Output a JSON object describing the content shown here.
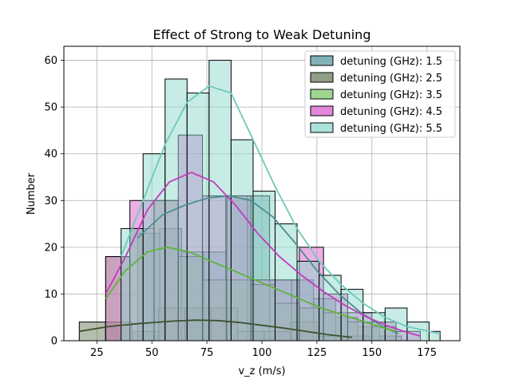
{
  "chart_data": {
    "type": "histogram",
    "title": "Effect of Strong to Weak Detuning",
    "xlabel": "v_z (m/s)",
    "ylabel": "Number",
    "xlim": [
      10,
      190
    ],
    "ylim": [
      0,
      63
    ],
    "xticks": [
      25,
      50,
      75,
      100,
      125,
      150,
      175
    ],
    "yticks": [
      0,
      10,
      20,
      30,
      40,
      50,
      60
    ],
    "grid": true,
    "legend_position": "top-right",
    "series": [
      {
        "name": "detuning (GHz): 1.5",
        "color": "#5a9aa0",
        "bins": [
          [
            43.5,
            53.5,
            23
          ],
          [
            53.5,
            63.5,
            24
          ],
          [
            63.5,
            73.5,
            19
          ],
          [
            73.5,
            83.5,
            19
          ],
          [
            83.5,
            93.5,
            31
          ],
          [
            93.5,
            103.5,
            31
          ],
          [
            103.5,
            113.5,
            13
          ],
          [
            113.5,
            123.5,
            13
          ],
          [
            123.5,
            133.5,
            9
          ],
          [
            133.5,
            143.5,
            5
          ],
          [
            143.5,
            153.5,
            3
          ],
          [
            153.5,
            163.5,
            1
          ]
        ],
        "kde": [
          [
            43.5,
            22
          ],
          [
            55,
            27
          ],
          [
            65,
            29
          ],
          [
            75,
            30.5
          ],
          [
            85,
            31
          ],
          [
            95,
            30
          ],
          [
            105,
            26.5
          ],
          [
            115,
            21
          ],
          [
            125,
            15
          ],
          [
            135,
            10
          ],
          [
            145,
            6
          ],
          [
            155,
            3
          ],
          [
            162,
            1.5
          ]
        ],
        "kde_color": "#4a8f8f"
      },
      {
        "name": "detuning (GHz): 2.5",
        "color": "#6b7d5c",
        "bins": [
          [
            17,
            29,
            4
          ],
          [
            29,
            41,
            4
          ],
          [
            41,
            53,
            2
          ],
          [
            53,
            65,
            7
          ],
          [
            65,
            77,
            7
          ],
          [
            77,
            89,
            7
          ],
          [
            89,
            101,
            2
          ],
          [
            101,
            113,
            2
          ],
          [
            113,
            125,
            4
          ],
          [
            125,
            137,
            1
          ],
          [
            137,
            149,
            1
          ]
        ],
        "kde": [
          [
            17,
            2
          ],
          [
            30,
            3
          ],
          [
            45,
            3.7
          ],
          [
            60,
            4.2
          ],
          [
            70,
            4.4
          ],
          [
            80,
            4.3
          ],
          [
            90,
            3.9
          ],
          [
            100,
            3.3
          ],
          [
            110,
            2.7
          ],
          [
            120,
            2
          ],
          [
            130,
            1.3
          ],
          [
            141,
            0.7
          ]
        ],
        "kde_color": "#3d5230"
      },
      {
        "name": "detuning (GHz): 3.5",
        "color": "#7ec86b",
        "bins": [
          [
            29,
            40,
            18
          ],
          [
            40,
            51,
            24
          ],
          [
            51,
            62,
            30
          ],
          [
            62,
            73,
            18
          ],
          [
            73,
            84,
            13
          ],
          [
            84,
            95,
            13
          ],
          [
            95,
            106,
            12
          ],
          [
            106,
            117,
            8
          ],
          [
            117,
            128,
            7
          ],
          [
            128,
            139,
            6
          ],
          [
            139,
            150,
            4
          ],
          [
            150,
            161,
            3
          ]
        ],
        "kde": [
          [
            29,
            9
          ],
          [
            38,
            15
          ],
          [
            48,
            19
          ],
          [
            57,
            20
          ],
          [
            67,
            19
          ],
          [
            77,
            17
          ],
          [
            87,
            15
          ],
          [
            97,
            13
          ],
          [
            107,
            11
          ],
          [
            117,
            9
          ],
          [
            127,
            7
          ],
          [
            137,
            5.5
          ],
          [
            147,
            4
          ],
          [
            157,
            2.5
          ],
          [
            161,
            2
          ]
        ],
        "kde_color": "#5fb33a"
      },
      {
        "name": "detuning (GHz): 4.5",
        "color": "#d75fcc",
        "bins": [
          [
            29,
            40,
            18
          ],
          [
            40,
            51,
            30
          ],
          [
            51,
            62,
            30
          ],
          [
            62,
            73,
            44
          ],
          [
            73,
            84,
            31
          ],
          [
            84,
            95,
            31
          ],
          [
            95,
            106,
            13
          ],
          [
            106,
            117,
            13
          ],
          [
            117,
            128,
            20
          ],
          [
            128,
            139,
            10
          ],
          [
            139,
            150,
            6
          ],
          [
            150,
            161,
            4
          ],
          [
            161,
            172,
            2
          ]
        ],
        "kde": [
          [
            29,
            10
          ],
          [
            38,
            18
          ],
          [
            48,
            28
          ],
          [
            58,
            34
          ],
          [
            68,
            36
          ],
          [
            78,
            34
          ],
          [
            88,
            29
          ],
          [
            98,
            23
          ],
          [
            108,
            18
          ],
          [
            118,
            14
          ],
          [
            128,
            10.5
          ],
          [
            138,
            7.5
          ],
          [
            148,
            5
          ],
          [
            158,
            3
          ],
          [
            168,
            1.5
          ],
          [
            172,
            1
          ]
        ],
        "kde_color": "#c13bbd"
      },
      {
        "name": "detuning (GHz): 5.5",
        "color": "#8fd8cc",
        "bins": [
          [
            36,
            46,
            24
          ],
          [
            46,
            56,
            40
          ],
          [
            56,
            66,
            56
          ],
          [
            66,
            76,
            53
          ],
          [
            76,
            86,
            60
          ],
          [
            86,
            96,
            43
          ],
          [
            96,
            106,
            32
          ],
          [
            106,
            116,
            25
          ],
          [
            116,
            126,
            17
          ],
          [
            126,
            136,
            14
          ],
          [
            136,
            146,
            11
          ],
          [
            146,
            156,
            6
          ],
          [
            156,
            166,
            7
          ],
          [
            166,
            176,
            4
          ],
          [
            176,
            181,
            2
          ]
        ],
        "kde": [
          [
            36,
            18
          ],
          [
            46,
            30
          ],
          [
            56,
            42
          ],
          [
            66,
            51
          ],
          [
            76,
            54.5
          ],
          [
            86,
            53
          ],
          [
            96,
            43
          ],
          [
            106,
            33
          ],
          [
            116,
            24
          ],
          [
            126,
            17
          ],
          [
            136,
            12
          ],
          [
            146,
            8
          ],
          [
            156,
            5
          ],
          [
            166,
            3
          ],
          [
            176,
            2
          ],
          [
            181,
            1.5
          ]
        ],
        "kde_color": "#6ccabb"
      }
    ]
  }
}
